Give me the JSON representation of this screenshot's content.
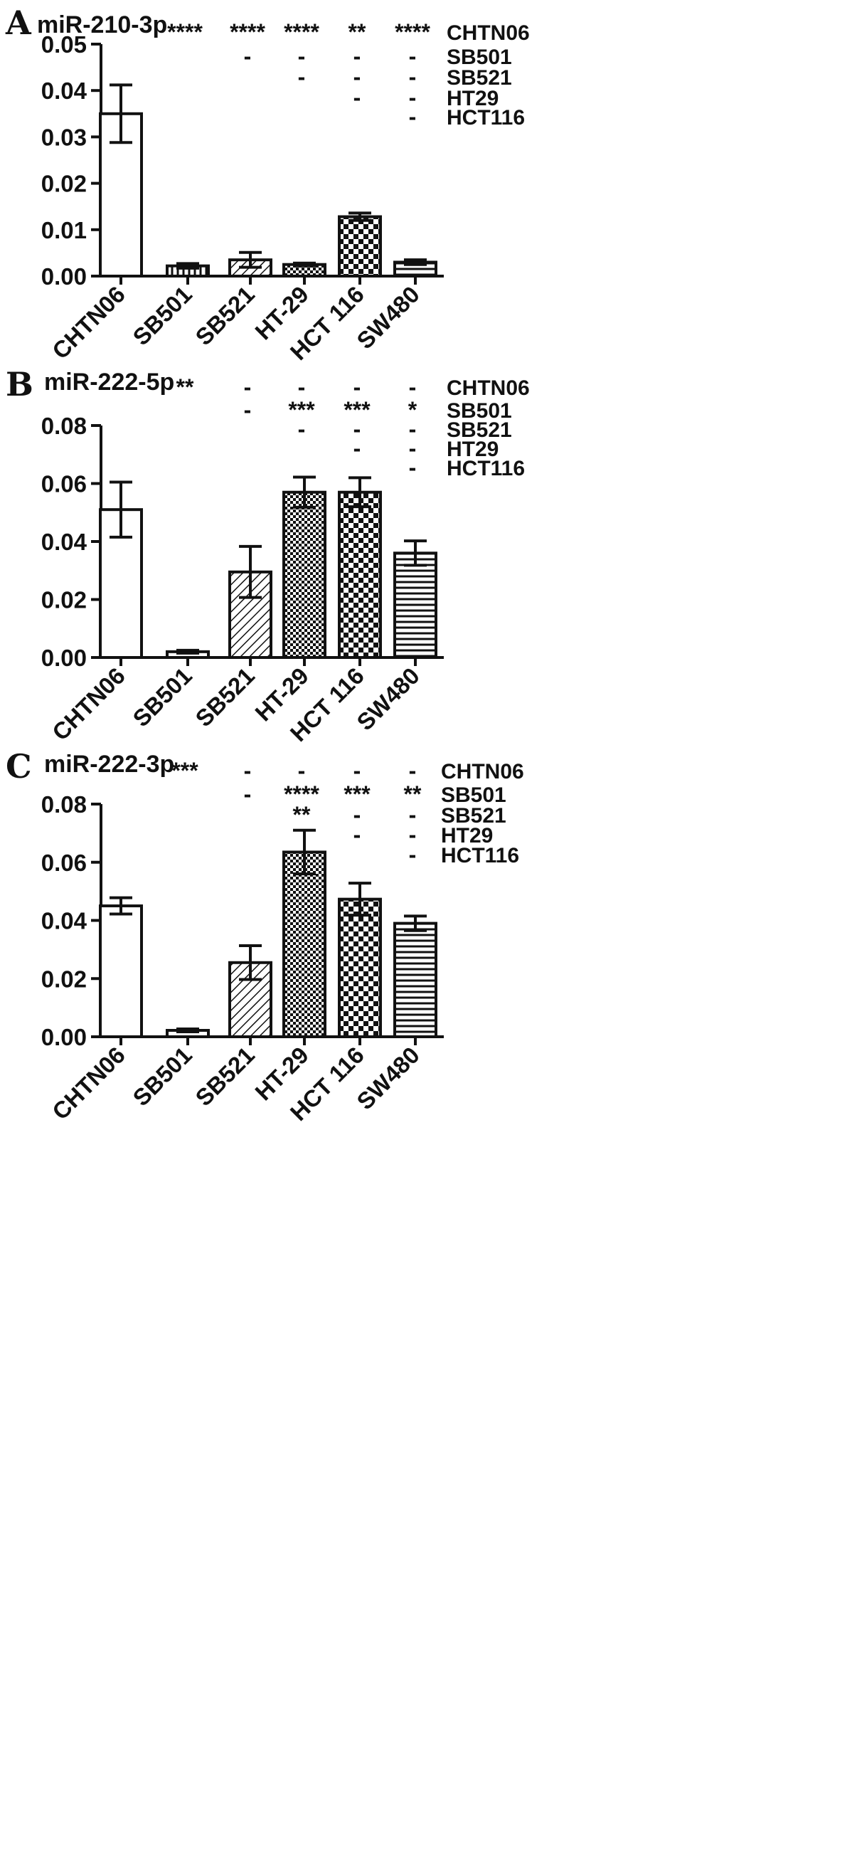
{
  "chart_data": [
    {
      "type": "bar",
      "panel": "A",
      "title": "miR-210-3p",
      "categories": [
        "CHTN06",
        "SB501",
        "SB521",
        "HT-29",
        "HCT 116",
        "SW480"
      ],
      "values": [
        0.035,
        0.0022,
        0.0035,
        0.0025,
        0.0128,
        0.003
      ],
      "errors": [
        0.0062,
        0.0005,
        0.0016,
        0.0003,
        0.0008,
        0.0005
      ],
      "ylim": [
        0,
        0.05
      ],
      "yticks": [
        "0.00",
        "0.01",
        "0.02",
        "0.03",
        "0.04",
        "0.05"
      ],
      "fills": [
        "white",
        "vstripe",
        "diag",
        "check-fine",
        "check",
        "hstripe"
      ],
      "comparison_rows": [
        "CHTN06",
        "SB501",
        "SB521",
        "HT29",
        "HCT116"
      ],
      "significance": [
        [
          "****",
          "****",
          "****",
          "**",
          "****"
        ],
        [
          "",
          "-",
          "-",
          "-",
          "-"
        ],
        [
          "",
          "",
          "-",
          "-",
          "-"
        ],
        [
          "",
          "",
          "",
          "-",
          "-"
        ],
        [
          "",
          "",
          "",
          "",
          "-"
        ]
      ]
    },
    {
      "type": "bar",
      "panel": "B",
      "title": "miR-222-5p",
      "categories": [
        "CHTN06",
        "SB501",
        "SB521",
        "HT-29",
        "HCT 116",
        "SW480"
      ],
      "values": [
        0.051,
        0.002,
        0.0295,
        0.057,
        0.057,
        0.036
      ],
      "errors": [
        0.0095,
        0.0005,
        0.0088,
        0.0052,
        0.005,
        0.0042
      ],
      "ylim": [
        0,
        0.08
      ],
      "yticks": [
        "0.00",
        "0.02",
        "0.04",
        "0.06",
        "0.08"
      ],
      "fills": [
        "white",
        "white",
        "diag",
        "check-fine",
        "check",
        "hstripe"
      ],
      "comparison_rows": [
        "CHTN06",
        "SB501",
        "SB521",
        "HT29",
        "HCT116"
      ],
      "significance": [
        [
          "**",
          "-",
          "-",
          "-",
          "-"
        ],
        [
          "",
          "-",
          "***",
          "***",
          "*"
        ],
        [
          "",
          "",
          "-",
          "-",
          "-"
        ],
        [
          "",
          "",
          "",
          "-",
          "-"
        ],
        [
          "",
          "",
          "",
          "",
          "-"
        ]
      ]
    },
    {
      "type": "bar",
      "panel": "C",
      "title": "miR-222-3p",
      "categories": [
        "CHTN06",
        "SB501",
        "SB521",
        "HT-29",
        "HCT 116",
        "SW480"
      ],
      "values": [
        0.045,
        0.0022,
        0.0255,
        0.0635,
        0.0473,
        0.039
      ],
      "errors": [
        0.0028,
        0.0005,
        0.0058,
        0.0075,
        0.0055,
        0.0025
      ],
      "ylim": [
        0,
        0.08
      ],
      "yticks": [
        "0.00",
        "0.02",
        "0.04",
        "0.06",
        "0.08"
      ],
      "fills": [
        "white",
        "white",
        "diag",
        "check-fine",
        "check",
        "hstripe"
      ],
      "comparison_rows": [
        "CHTN06",
        "SB501",
        "SB521",
        "HT29",
        "HCT116"
      ],
      "significance": [
        [
          "***",
          "-",
          "-",
          "-",
          "-"
        ],
        [
          "",
          "-",
          "****",
          "***",
          "**"
        ],
        [
          "",
          "",
          "**",
          "-",
          "-"
        ],
        [
          "",
          "",
          "",
          "-",
          "-"
        ],
        [
          "",
          "",
          "",
          "",
          "-"
        ]
      ]
    }
  ]
}
